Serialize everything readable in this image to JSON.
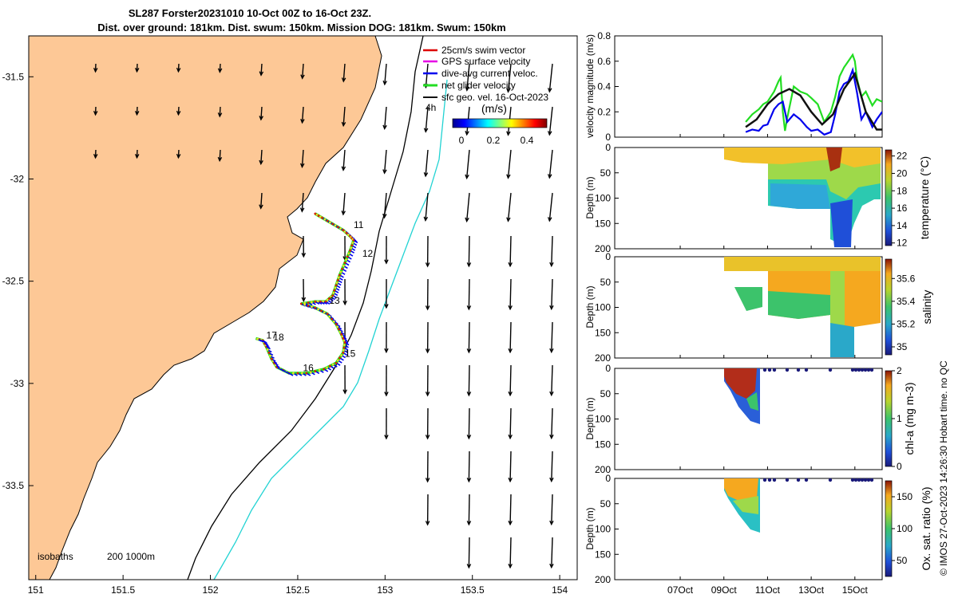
{
  "title": {
    "line1": "SL287 Forster20231010 10-Oct 00Z to 16-Oct 23Z.",
    "line2": "Dist. over ground: 181km. Dist. swum: 150km. Mission DOG: 181km. Swum: 150km"
  },
  "footer": "© IMOS 27-Oct-2023 14:26:30 Hobart time. no QC",
  "colors": {
    "land": "#fdc896",
    "coast": "#000000",
    "iso200": "#000000",
    "iso1000": "#22d3d3",
    "ground": "#22dd22",
    "gps": "#e600e6",
    "current": "#0000ee",
    "swim": "#dd0000"
  },
  "map": {
    "legend": [
      "25cm/s swim vector",
      "GPS surface velocity",
      "dive-avg current veloc.",
      "net glider velocity",
      "sfc geo. vel. 16-Oct-2023"
    ],
    "colorbar_label": "(m/s)",
    "colorbar_ticks": [
      "0",
      "0.2",
      "0.4"
    ],
    "colorbar_range": [
      -0.1,
      0.5
    ],
    "xlim": [
      150.96,
      154.1
    ],
    "ylim": [
      -33.96,
      -31.3
    ],
    "xticks": [
      "151",
      "151.5",
      "152",
      "152.5",
      "153",
      "153.5",
      "154"
    ],
    "yticks": [
      "-31.5",
      "-32",
      "-32.5",
      "-33",
      "-33.5"
    ],
    "isobath_label": "isobaths",
    "isobath_values": "200  1000m",
    "scale_label": "4h",
    "day_labels": [
      {
        "text": "11",
        "lon": 152.82,
        "lat": -32.24
      },
      {
        "text": "12",
        "lon": 152.87,
        "lat": -32.38
      },
      {
        "text": "13",
        "lon": 152.68,
        "lat": -32.61
      },
      {
        "text": "17",
        "lon": 152.32,
        "lat": -32.78
      },
      {
        "text": "18",
        "lon": 152.36,
        "lat": -32.79
      },
      {
        "text": "15",
        "lon": 152.77,
        "lat": -32.87
      },
      {
        "text": "16",
        "lon": 152.53,
        "lat": -32.94
      }
    ],
    "track": [
      [
        152.6,
        -32.17
      ],
      [
        152.64,
        -32.19
      ],
      [
        152.7,
        -32.22
      ],
      [
        152.76,
        -32.25
      ],
      [
        152.8,
        -32.28
      ],
      [
        152.82,
        -32.3
      ],
      [
        152.8,
        -32.35
      ],
      [
        152.77,
        -32.41
      ],
      [
        152.74,
        -32.47
      ],
      [
        152.72,
        -32.52
      ],
      [
        152.7,
        -32.57
      ],
      [
        152.66,
        -32.6
      ],
      [
        152.6,
        -32.6
      ],
      [
        152.52,
        -32.61
      ],
      [
        152.6,
        -32.63
      ],
      [
        152.67,
        -32.66
      ],
      [
        152.72,
        -32.71
      ],
      [
        152.75,
        -32.76
      ],
      [
        152.77,
        -32.8
      ],
      [
        152.76,
        -32.85
      ],
      [
        152.72,
        -32.9
      ],
      [
        152.65,
        -32.93
      ],
      [
        152.55,
        -32.95
      ],
      [
        152.45,
        -32.95
      ],
      [
        152.38,
        -32.92
      ],
      [
        152.35,
        -32.88
      ],
      [
        152.32,
        -32.82
      ],
      [
        152.3,
        -32.79
      ],
      [
        152.26,
        -32.78
      ]
    ]
  },
  "chart_data": [
    {
      "type": "line",
      "ylabel": "velocity magnitude (m/s)",
      "ylim": [
        0,
        0.8
      ],
      "yticks": [
        "0",
        "0.2",
        "0.4",
        "0.6",
        "0.8"
      ],
      "xlim": [
        4,
        16.25
      ],
      "series": [
        {
          "name": "net glider velocity",
          "color": "#22dd22",
          "x": [
            10,
            10.3,
            10.6,
            10.8,
            11,
            11.3,
            11.5,
            11.6,
            11.7,
            11.8,
            11.9,
            12.2,
            12.5,
            12.8,
            13,
            13.3,
            13.6,
            13.9,
            14.1,
            14.3,
            14.5,
            14.7,
            14.9,
            15,
            15.1,
            15.3,
            15.5,
            15.8,
            16,
            16.25
          ],
          "y": [
            0.12,
            0.18,
            0.22,
            0.26,
            0.28,
            0.36,
            0.44,
            0.47,
            0.2,
            0.05,
            0.15,
            0.4,
            0.36,
            0.34,
            0.31,
            0.26,
            0.12,
            0.2,
            0.32,
            0.48,
            0.55,
            0.6,
            0.65,
            0.6,
            0.46,
            0.32,
            0.36,
            0.25,
            0.3,
            0.28
          ]
        },
        {
          "name": "dive-avg current veloc.",
          "color": "#0000ee",
          "x": [
            10,
            10.3,
            10.6,
            10.8,
            11,
            11.3,
            11.5,
            11.7,
            11.9,
            12.2,
            12.5,
            12.8,
            13,
            13.3,
            13.6,
            13.9,
            14.1,
            14.3,
            14.5,
            14.7,
            14.9,
            15.1,
            15.3,
            15.5,
            15.8,
            16,
            16.25
          ],
          "y": [
            0.04,
            0.06,
            0.05,
            0.09,
            0.1,
            0.22,
            0.26,
            0.28,
            0.12,
            0.18,
            0.14,
            0.08,
            0.05,
            0.06,
            0.02,
            0.04,
            0.18,
            0.36,
            0.42,
            0.44,
            0.53,
            0.35,
            0.14,
            0.2,
            0.08,
            0.14,
            0.2
          ]
        },
        {
          "name": "sfc geo. vel.",
          "color": "#111111",
          "x": [
            10,
            10.5,
            11,
            11.5,
            12,
            12.5,
            13,
            13.5,
            14,
            14.5,
            15,
            15.5,
            16,
            16.25
          ],
          "y": [
            0.08,
            0.14,
            0.26,
            0.34,
            0.38,
            0.33,
            0.2,
            0.1,
            0.18,
            0.38,
            0.5,
            0.2,
            0.06,
            0.06
          ]
        }
      ]
    },
    {
      "type": "heatmap",
      "ylabel": "Depth (m)",
      "cbar_label": "temperature (°C)",
      "clim": [
        11.7,
        22.7
      ],
      "cbar_ticks": [
        "12",
        "14",
        "16",
        "18",
        "20",
        "22"
      ],
      "ylim": [
        0,
        200
      ],
      "yticks": [
        "0",
        "50",
        "100",
        "150",
        "200"
      ]
    },
    {
      "type": "heatmap",
      "ylabel": "Depth (m)",
      "cbar_label": "salinity",
      "clim": [
        34.93,
        35.77
      ],
      "cbar_ticks": [
        "35",
        "35.2",
        "35.4",
        "35.6"
      ],
      "ylim": [
        0,
        200
      ],
      "yticks": [
        "0",
        "50",
        "100",
        "150",
        "200"
      ]
    },
    {
      "type": "heatmap",
      "ylabel": "Depth (m)",
      "cbar_label": "chl-a (mg m-3)",
      "clim": [
        0,
        2
      ],
      "cbar_ticks": [
        "0",
        "1",
        "2"
      ],
      "ylim": [
        0,
        200
      ],
      "yticks": [
        "0",
        "50",
        "100",
        "150",
        "200"
      ]
    },
    {
      "type": "heatmap",
      "ylabel": "Depth (m)",
      "cbar_label": "Ox. sat. ratio (%)",
      "clim": [
        25,
        175
      ],
      "cbar_ticks": [
        "50",
        "100",
        "150"
      ],
      "ylim": [
        0,
        200
      ],
      "yticks": [
        "0",
        "50",
        "100",
        "150",
        "200"
      ],
      "xticks": [
        "07Oct",
        "09Oct",
        "11Oct",
        "13Oct",
        "15Oct"
      ],
      "xtick_values": [
        7,
        9,
        11,
        13,
        15
      ]
    }
  ]
}
